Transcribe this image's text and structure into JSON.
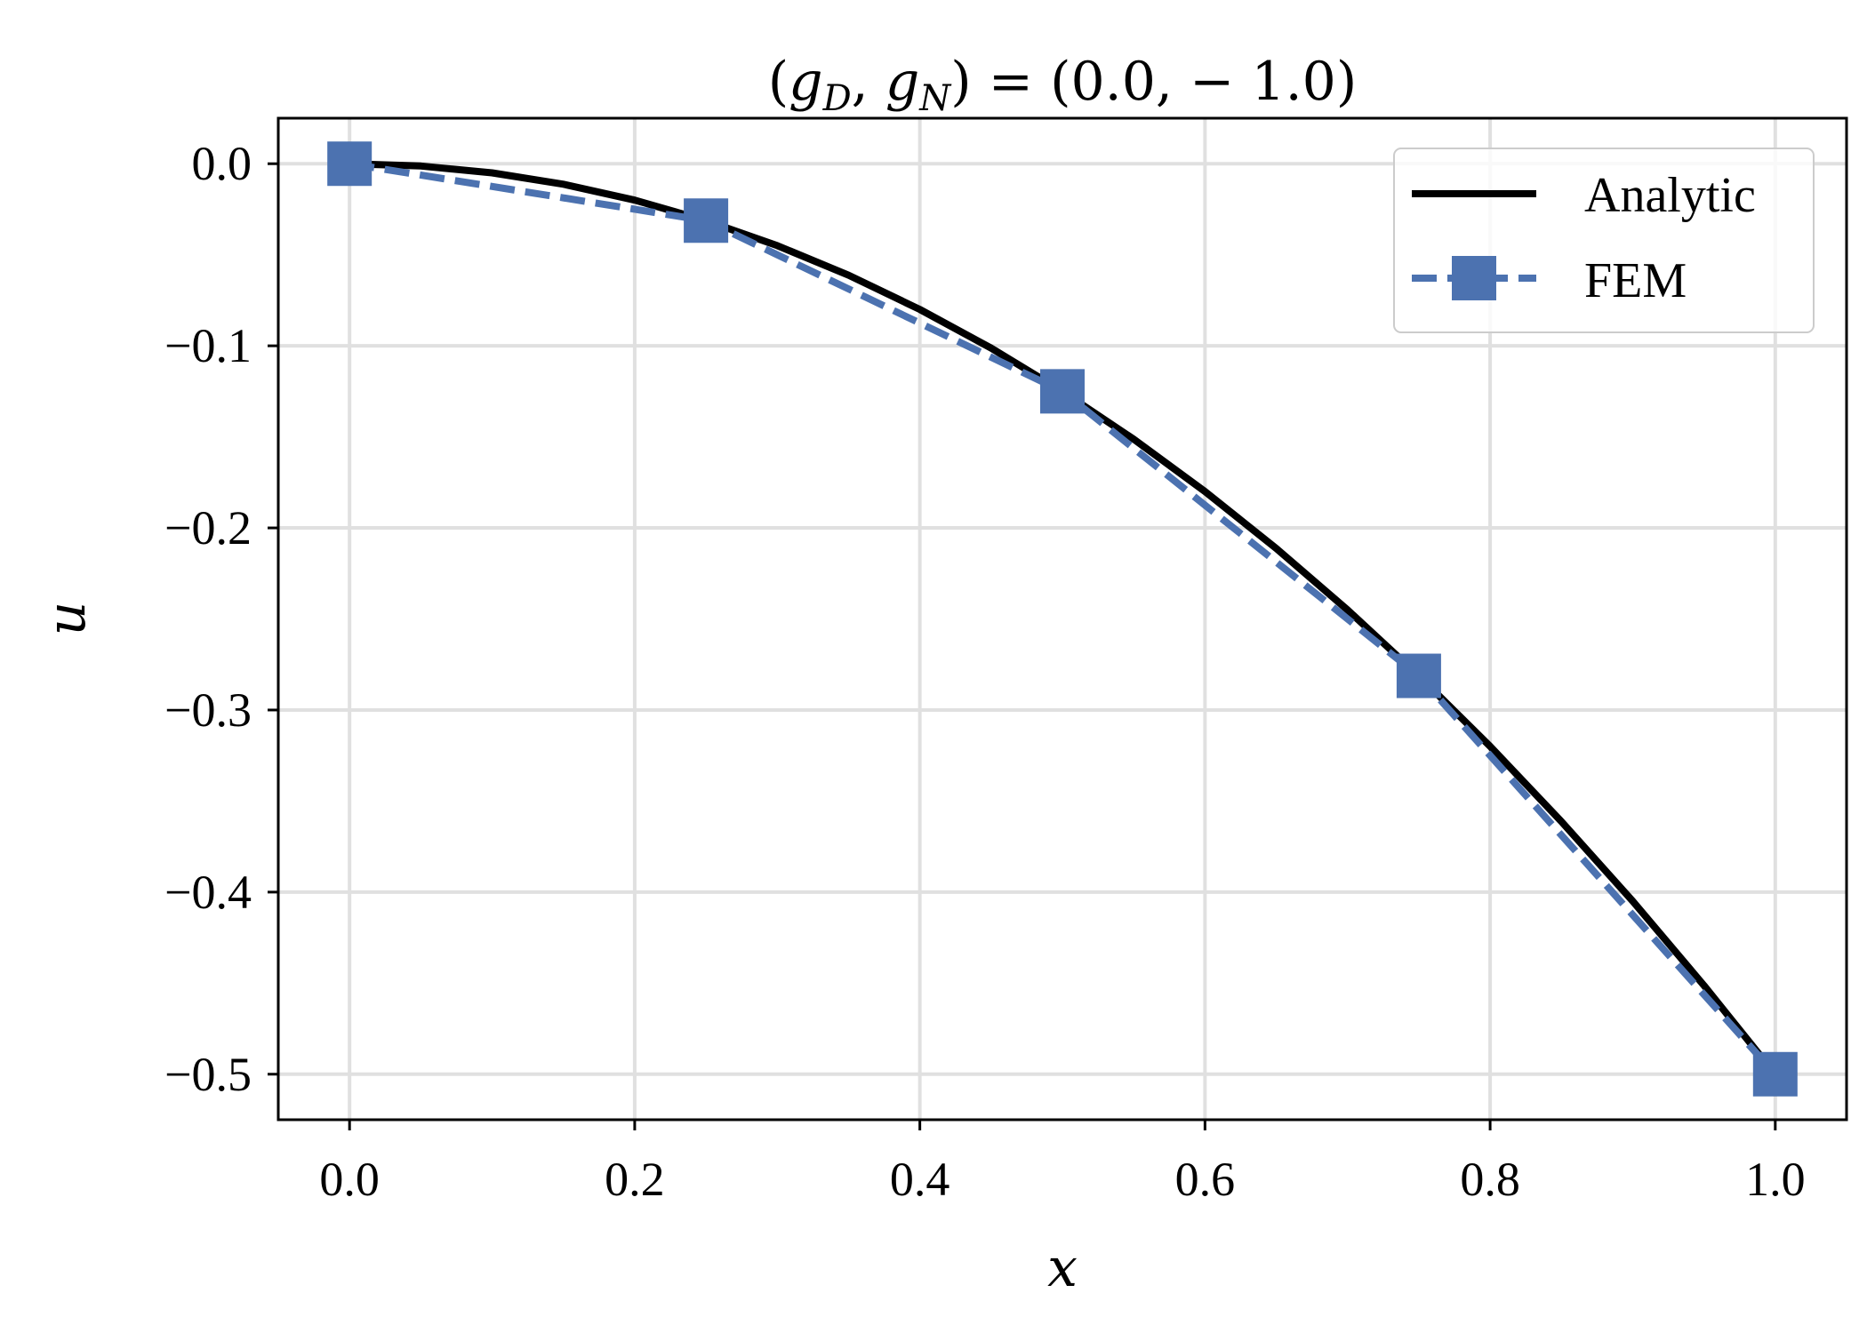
{
  "chart_data": {
    "type": "line",
    "title": "(g_D, g_N) = (0.0, −1.0)",
    "title_parts": {
      "open": "(",
      "g1": "g",
      "sub1": "D",
      "comma": ", ",
      "g2": "g",
      "sub2": "N",
      "rest": ") = (0.0, − 1.0)"
    },
    "xlabel": "x",
    "ylabel": "u",
    "xlim": [
      -0.05,
      1.05
    ],
    "ylim": [
      -0.525,
      0.025
    ],
    "xticks": [
      0.0,
      0.2,
      0.4,
      0.6,
      0.8,
      1.0
    ],
    "xtick_labels": [
      "0.0",
      "0.2",
      "0.4",
      "0.6",
      "0.8",
      "1.0"
    ],
    "yticks": [
      0.0,
      -0.1,
      -0.2,
      -0.3,
      -0.4,
      -0.5
    ],
    "ytick_labels": [
      "0.0",
      "−0.1",
      "−0.2",
      "−0.3",
      "−0.4",
      "−0.5"
    ],
    "grid": true,
    "legend_position": "top-right",
    "series": [
      {
        "name": "Analytic",
        "color": "#000000",
        "style": "solid",
        "x": [
          0.0,
          0.05,
          0.1,
          0.15,
          0.2,
          0.25,
          0.3,
          0.35,
          0.4,
          0.45,
          0.5,
          0.55,
          0.6,
          0.65,
          0.7,
          0.75,
          0.8,
          0.85,
          0.9,
          0.95,
          1.0
        ],
        "y": [
          0.0,
          -0.00125,
          -0.005,
          -0.01125,
          -0.02,
          -0.03125,
          -0.045,
          -0.06125,
          -0.08,
          -0.10125,
          -0.125,
          -0.15125,
          -0.18,
          -0.21125,
          -0.245,
          -0.28125,
          -0.32,
          -0.36125,
          -0.405,
          -0.45125,
          -0.5
        ]
      },
      {
        "name": "FEM",
        "color": "#4c72b0",
        "style": "dashed",
        "marker": "square",
        "x": [
          0.0,
          0.25,
          0.5,
          0.75,
          1.0
        ],
        "y": [
          0.0,
          -0.03125,
          -0.125,
          -0.28125,
          -0.5
        ]
      }
    ]
  }
}
